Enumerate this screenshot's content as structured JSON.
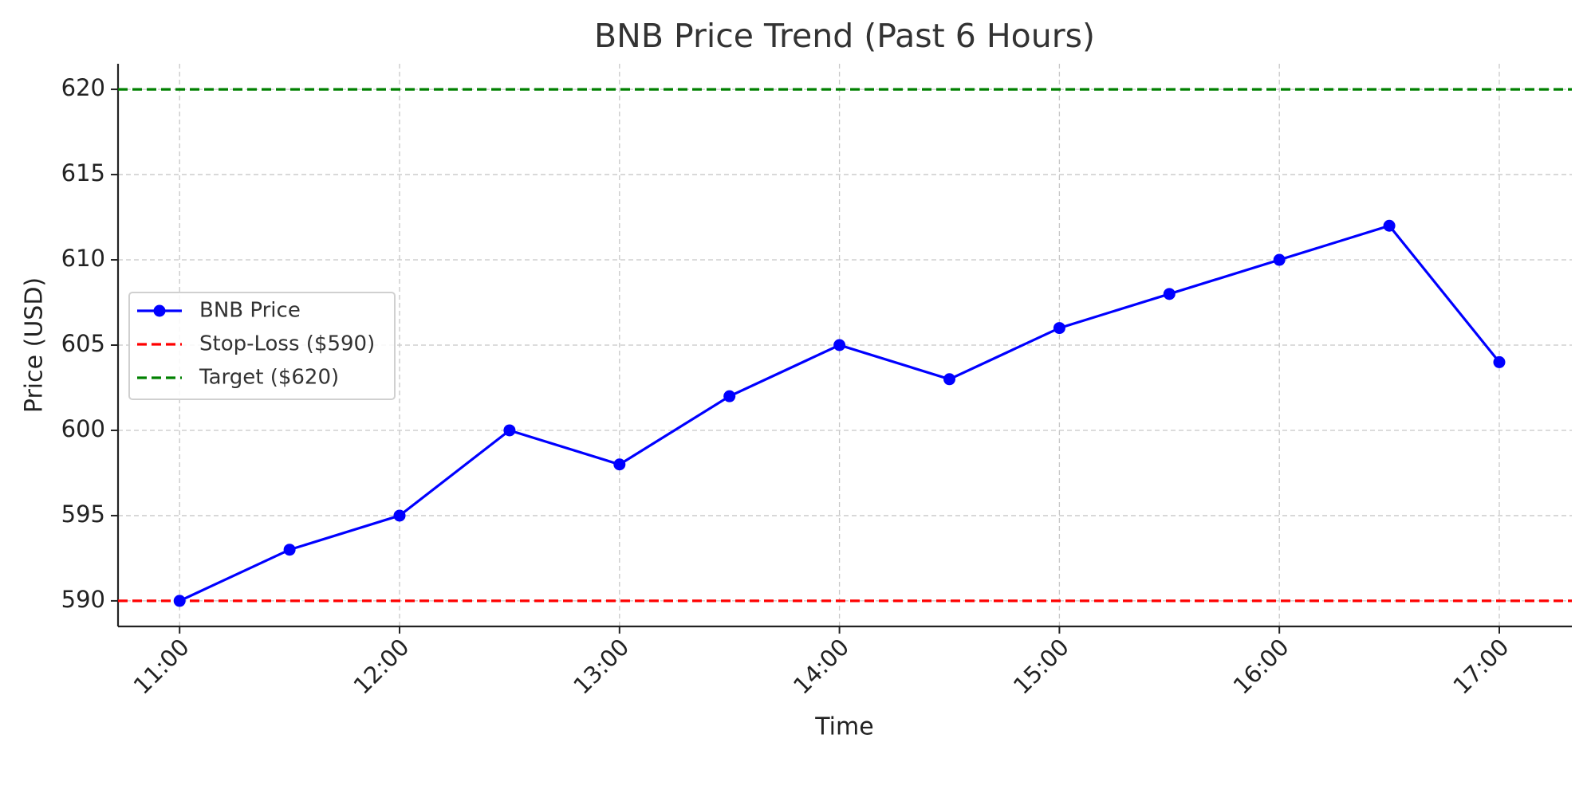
{
  "chart_data": {
    "type": "line",
    "title": "BNB Price Trend (Past 6 Hours)",
    "x_label": "Time",
    "y_label": "Price (USD)",
    "x": [
      11,
      11.5,
      12,
      12.5,
      13,
      13.5,
      14,
      14.5,
      15,
      15.5,
      16,
      16.5,
      17
    ],
    "series": [
      {
        "name": "BNB Price",
        "color": "#0000ff",
        "values": [
          590,
          593,
          595,
          600,
          598,
          602,
          605,
          603,
          606,
          608,
          610,
          612,
          604
        ]
      }
    ],
    "reference_lines": [
      {
        "name": "Stop-Loss ($590)",
        "color": "#ff0000",
        "value": 590
      },
      {
        "name": "Target ($620)",
        "color": "#008000",
        "value": 620
      }
    ],
    "xlim": [
      10.72,
      17.33
    ],
    "ylim": [
      588.5,
      621.5
    ],
    "xticks": [
      {
        "value": 11,
        "label": "11:00"
      },
      {
        "value": 12,
        "label": "12:00"
      },
      {
        "value": 13,
        "label": "13:00"
      },
      {
        "value": 14,
        "label": "14:00"
      },
      {
        "value": 15,
        "label": "15:00"
      },
      {
        "value": 16,
        "label": "16:00"
      },
      {
        "value": 17,
        "label": "17:00"
      }
    ],
    "yticks": [
      590,
      595,
      600,
      605,
      610,
      615,
      620
    ],
    "grid": true,
    "legend": "center left"
  }
}
